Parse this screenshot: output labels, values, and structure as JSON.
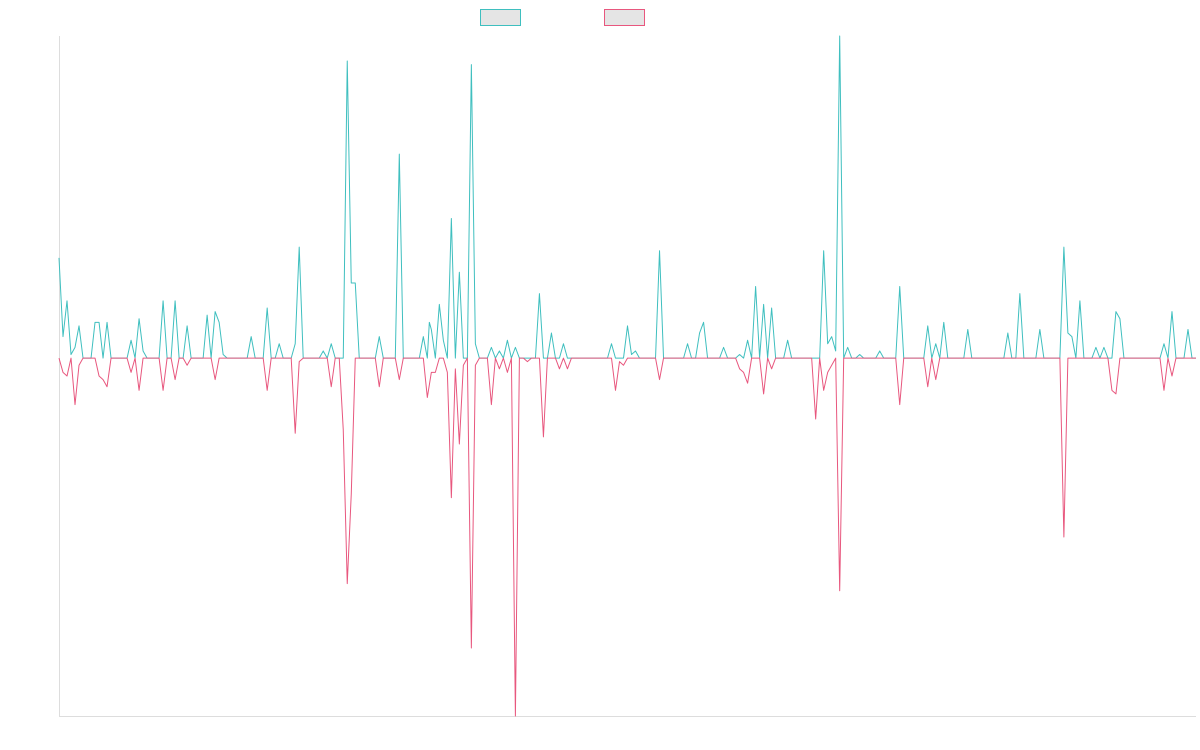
{
  "chart_data": {
    "type": "line",
    "title": "",
    "xlabel": "",
    "ylabel": "",
    "grid": false,
    "legend_position": "top-center",
    "ylim": [
      -1.0,
      0.9
    ],
    "x_count": 285,
    "baseline": 0,
    "colors": {
      "series_up": "#3fbfbf",
      "series_down": "#e8577e",
      "axis": "#dddddd",
      "legend_fill": "#e5e5e5"
    },
    "series": [
      {
        "color_key": "series_up",
        "points": [
          [
            0,
            0.28
          ],
          [
            1,
            0.06
          ],
          [
            2,
            0.16
          ],
          [
            3,
            0.01
          ],
          [
            4,
            0.03
          ],
          [
            5,
            0.09
          ],
          [
            6,
            0.0
          ],
          [
            9,
            0.1
          ],
          [
            10,
            0.1
          ],
          [
            11,
            0.0
          ],
          [
            12,
            0.1
          ],
          [
            13,
            0.0
          ],
          [
            18,
            0.05
          ],
          [
            19,
            0.0
          ],
          [
            20,
            0.11
          ],
          [
            21,
            0.02
          ],
          [
            22,
            0.0
          ],
          [
            26,
            0.16
          ],
          [
            27,
            0.0
          ],
          [
            29,
            0.16
          ],
          [
            30,
            0.0
          ],
          [
            32,
            0.09
          ],
          [
            33,
            0.0
          ],
          [
            37,
            0.12
          ],
          [
            38,
            0.0
          ],
          [
            39,
            0.13
          ],
          [
            40,
            0.1
          ],
          [
            41,
            0.01
          ],
          [
            48,
            0.06
          ],
          [
            49,
            0.0
          ],
          [
            52,
            0.14
          ],
          [
            53,
            0.0
          ],
          [
            55,
            0.04
          ],
          [
            59,
            0.04
          ],
          [
            60,
            0.31
          ],
          [
            61,
            0.0
          ],
          [
            66,
            0.02
          ],
          [
            67,
            0.0
          ],
          [
            68,
            0.04
          ],
          [
            69,
            0.0
          ],
          [
            72,
            0.83
          ],
          [
            73,
            0.21
          ],
          [
            74,
            0.21
          ],
          [
            75,
            0.0
          ],
          [
            80,
            0.06
          ],
          [
            81,
            0.0
          ],
          [
            85,
            0.57
          ],
          [
            86,
            0.0
          ],
          [
            91,
            0.06
          ],
          [
            92,
            0.0
          ],
          [
            92.5,
            0.1
          ],
          [
            93,
            0.08
          ],
          [
            94,
            0.0
          ],
          [
            95,
            0.15
          ],
          [
            96,
            0.05
          ],
          [
            97,
            0.0
          ],
          [
            98,
            0.39
          ],
          [
            99,
            0.0
          ],
          [
            100,
            0.24
          ],
          [
            101,
            0.0
          ],
          [
            102,
            0.0
          ],
          [
            103,
            0.82
          ],
          [
            104,
            0.04
          ],
          [
            105,
            0.0
          ],
          [
            108,
            0.03
          ],
          [
            109,
            0.0
          ],
          [
            110,
            0.02
          ],
          [
            111,
            0.0
          ],
          [
            112,
            0.05
          ],
          [
            113,
            0.0
          ],
          [
            114,
            0.03
          ],
          [
            115,
            0.0
          ],
          [
            120,
            0.18
          ],
          [
            121,
            0.0
          ],
          [
            123,
            0.07
          ],
          [
            124,
            0.0
          ],
          [
            126,
            0.04
          ],
          [
            127,
            0.0
          ],
          [
            138,
            0.04
          ],
          [
            139,
            0.0
          ],
          [
            142,
            0.09
          ],
          [
            143,
            0.01
          ],
          [
            144,
            0.02
          ],
          [
            145,
            0.0
          ],
          [
            150,
            0.3
          ],
          [
            151,
            0.0
          ],
          [
            157,
            0.04
          ],
          [
            158,
            0.0
          ],
          [
            160,
            0.07
          ],
          [
            161,
            0.1
          ],
          [
            162,
            0.0
          ],
          [
            166,
            0.03
          ],
          [
            167,
            0.0
          ],
          [
            170,
            0.01
          ],
          [
            171,
            0.0
          ],
          [
            172,
            0.05
          ],
          [
            173,
            0.0
          ],
          [
            174,
            0.2
          ],
          [
            175,
            0.0
          ],
          [
            176,
            0.15
          ],
          [
            177,
            0.0
          ],
          [
            178,
            0.14
          ],
          [
            179,
            0.0
          ],
          [
            182,
            0.05
          ],
          [
            183,
            0.0
          ],
          [
            191,
            0.3
          ],
          [
            192,
            0.04
          ],
          [
            193,
            0.06
          ],
          [
            194,
            0.02
          ],
          [
            195,
            0.9
          ],
          [
            196,
            0.0
          ],
          [
            197,
            0.03
          ],
          [
            198,
            0.0
          ],
          [
            200,
            0.01
          ],
          [
            201,
            0.0
          ],
          [
            205,
            0.02
          ],
          [
            206,
            0.0
          ],
          [
            210,
            0.2
          ],
          [
            211,
            0.0
          ],
          [
            217,
            0.09
          ],
          [
            218,
            0.0
          ],
          [
            219,
            0.04
          ],
          [
            220,
            0.0
          ],
          [
            221,
            0.1
          ],
          [
            222,
            0.0
          ],
          [
            227,
            0.08
          ],
          [
            228,
            0.0
          ],
          [
            237,
            0.07
          ],
          [
            238,
            0.0
          ],
          [
            240,
            0.18
          ],
          [
            241,
            0.0
          ],
          [
            245,
            0.08
          ],
          [
            246,
            0.0
          ],
          [
            251,
            0.31
          ],
          [
            252,
            0.07
          ],
          [
            253,
            0.06
          ],
          [
            254,
            0.0
          ],
          [
            255,
            0.16
          ],
          [
            256,
            0.0
          ],
          [
            259,
            0.03
          ],
          [
            260,
            0.0
          ],
          [
            261,
            0.03
          ],
          [
            262,
            0.0
          ],
          [
            264,
            0.13
          ],
          [
            265,
            0.11
          ],
          [
            266,
            0.0
          ],
          [
            276,
            0.04
          ],
          [
            277,
            0.0
          ],
          [
            278,
            0.13
          ],
          [
            279,
            0.0
          ],
          [
            282,
            0.08
          ],
          [
            283,
            0.0
          ],
          [
            284,
            0.0
          ]
        ]
      },
      {
        "color_key": "series_down",
        "points": [
          [
            0,
            0.0
          ],
          [
            1,
            -0.04
          ],
          [
            2,
            -0.05
          ],
          [
            3,
            0.0
          ],
          [
            4,
            -0.13
          ],
          [
            5,
            -0.02
          ],
          [
            6,
            0.0
          ],
          [
            10,
            -0.05
          ],
          [
            11,
            -0.06
          ],
          [
            12,
            -0.08
          ],
          [
            13,
            0.0
          ],
          [
            18,
            -0.04
          ],
          [
            19,
            0.0
          ],
          [
            20,
            -0.09
          ],
          [
            21,
            0.0
          ],
          [
            26,
            -0.09
          ],
          [
            27,
            0.0
          ],
          [
            29,
            -0.06
          ],
          [
            30,
            0.0
          ],
          [
            32,
            -0.02
          ],
          [
            33,
            0.0
          ],
          [
            39,
            -0.06
          ],
          [
            40,
            0.0
          ],
          [
            52,
            -0.09
          ],
          [
            53,
            0.0
          ],
          [
            59,
            -0.21
          ],
          [
            60,
            -0.01
          ],
          [
            61,
            0.0
          ],
          [
            68,
            -0.08
          ],
          [
            69,
            0.0
          ],
          [
            71,
            -0.2
          ],
          [
            72,
            -0.63
          ],
          [
            73,
            -0.38
          ],
          [
            74,
            0.0
          ],
          [
            80,
            -0.08
          ],
          [
            81,
            0.0
          ],
          [
            85,
            -0.06
          ],
          [
            86,
            0.0
          ],
          [
            92,
            -0.11
          ],
          [
            93,
            -0.04
          ],
          [
            94,
            -0.04
          ],
          [
            95,
            0.0
          ],
          [
            97,
            -0.04
          ],
          [
            98,
            -0.39
          ],
          [
            99,
            -0.03
          ],
          [
            100,
            -0.24
          ],
          [
            101,
            -0.02
          ],
          [
            102,
            0.0
          ],
          [
            103,
            -0.81
          ],
          [
            104,
            -0.02
          ],
          [
            105,
            0.0
          ],
          [
            108,
            -0.13
          ],
          [
            109,
            0.0
          ],
          [
            110,
            -0.03
          ],
          [
            111,
            0.0
          ],
          [
            112,
            -0.04
          ],
          [
            113,
            0.0
          ],
          [
            114,
            -1.0
          ],
          [
            115,
            0.0
          ],
          [
            117,
            -0.01
          ],
          [
            118,
            0.0
          ],
          [
            121,
            -0.22
          ],
          [
            122,
            0.0
          ],
          [
            125,
            -0.03
          ],
          [
            126,
            0.0
          ],
          [
            127,
            -0.03
          ],
          [
            128,
            0.0
          ],
          [
            139,
            -0.09
          ],
          [
            140,
            -0.01
          ],
          [
            141,
            -0.02
          ],
          [
            142,
            0.0
          ],
          [
            150,
            -0.06
          ],
          [
            151,
            0.0
          ],
          [
            170,
            -0.03
          ],
          [
            171,
            -0.04
          ],
          [
            172,
            -0.07
          ],
          [
            173,
            0.0
          ],
          [
            176,
            -0.1
          ],
          [
            177,
            0.0
          ],
          [
            178,
            -0.03
          ],
          [
            179,
            0.0
          ],
          [
            189,
            -0.17
          ],
          [
            190,
            0.0
          ],
          [
            191,
            -0.09
          ],
          [
            192,
            -0.04
          ],
          [
            193,
            -0.02
          ],
          [
            194,
            0.0
          ],
          [
            195,
            -0.65
          ],
          [
            196,
            0.0
          ],
          [
            210,
            -0.13
          ],
          [
            211,
            0.0
          ],
          [
            217,
            -0.08
          ],
          [
            218,
            0.0
          ],
          [
            219,
            -0.06
          ],
          [
            220,
            0.0
          ],
          [
            251,
            -0.5
          ],
          [
            252,
            0.0
          ],
          [
            263,
            -0.09
          ],
          [
            264,
            -0.1
          ],
          [
            265,
            0.0
          ],
          [
            276,
            -0.09
          ],
          [
            277,
            0.0
          ],
          [
            278,
            -0.05
          ],
          [
            279,
            0.0
          ],
          [
            284,
            0.0
          ]
        ]
      }
    ]
  }
}
